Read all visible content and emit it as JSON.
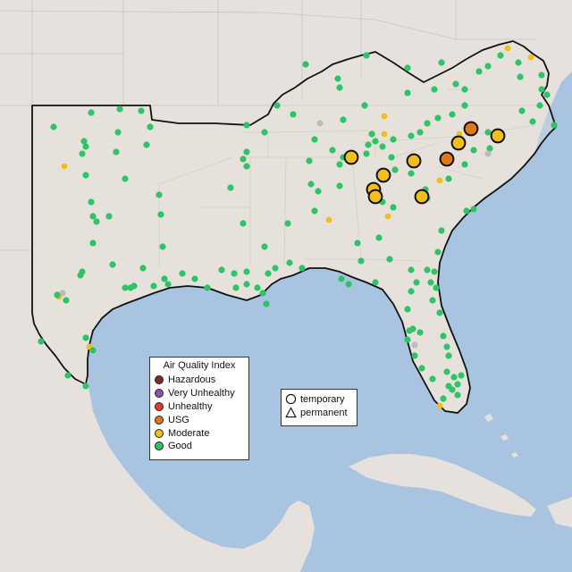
{
  "legend": {
    "title": "Air Quality Index",
    "categories": [
      {
        "label": "Hazardous",
        "color": "#7e2a2a"
      },
      {
        "label": "Very Unhealthy",
        "color": "#8e4fb1"
      },
      {
        "label": "Unhealthy",
        "color": "#e53a2e"
      },
      {
        "label": "USG",
        "color": "#e2761b"
      },
      {
        "label": "Moderate",
        "color": "#f2bf1a"
      },
      {
        "label": "Good",
        "color": "#2ec466"
      }
    ],
    "types": [
      {
        "label": "temporary",
        "shape": "circle"
      },
      {
        "label": "permanent",
        "shape": "triangle"
      }
    ]
  },
  "colors": {
    "water": "#a9c4e0",
    "land": "#e6e1dc",
    "region": "#e9e3dd",
    "good": "#2ec466",
    "moderate": "#f2bf1a",
    "usg": "#e2761b",
    "nodata": "#bdbdbd"
  },
  "monitors_large": [
    {
      "aqi": "Moderate"
    },
    {
      "aqi": "Moderate"
    },
    {
      "aqi": "Moderate"
    },
    {
      "aqi": "Moderate"
    },
    {
      "aqi": "Moderate"
    },
    {
      "aqi": "Moderate"
    },
    {
      "aqi": "Moderate"
    },
    {
      "aqi": "Moderate"
    },
    {
      "aqi": "USG"
    },
    {
      "aqi": "USG"
    }
  ]
}
